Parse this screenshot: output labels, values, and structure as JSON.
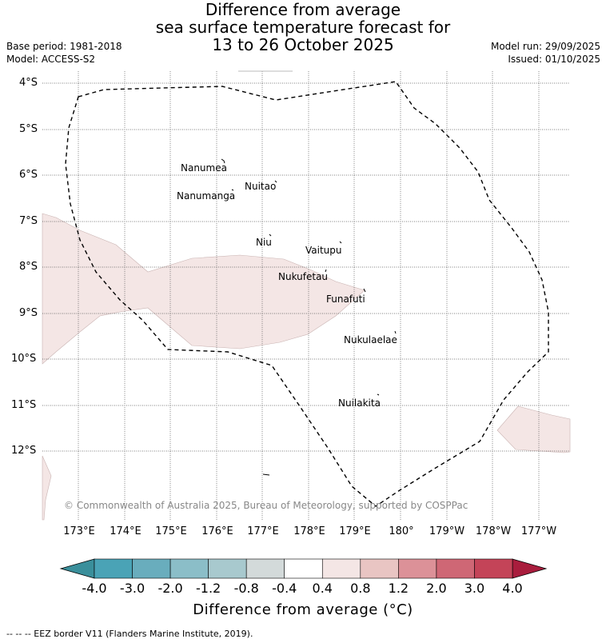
{
  "title": {
    "line1": "Difference from average",
    "line2": "sea surface temperature forecast for",
    "line3": "13 to 26 October 2025"
  },
  "meta": {
    "base_period": "Base period: 1981-2018",
    "model": "Model: ACCESS-S2",
    "model_run": "Model run: 29/09/2025",
    "issued": "Issued: 01/10/2025"
  },
  "map": {
    "latitude_labels": [
      "4°S",
      "5°S",
      "6°S",
      "7°S",
      "8°S",
      "9°S",
      "10°S",
      "11°S",
      "12°S"
    ],
    "longitude_labels": [
      "173°E",
      "174°E",
      "175°E",
      "176°E",
      "177°E",
      "178°E",
      "179°E",
      "180°",
      "179°W",
      "178°W",
      "177°W"
    ],
    "islands": [
      {
        "name": "Nanumea"
      },
      {
        "name": "Nuitao"
      },
      {
        "name": "Nanumanga"
      },
      {
        "name": "Niu"
      },
      {
        "name": "Vaitupu"
      },
      {
        "name": "Nukufetau"
      },
      {
        "name": "Funafuti"
      },
      {
        "name": "Nukulaelae"
      },
      {
        "name": "Nuilakita"
      }
    ],
    "copyright": "© Commonwealth of Australia 2025, Bureau of Meteorology, supported by COSPPac",
    "anomaly_fill_color": "#f4e6e5",
    "anomaly_range": "0.4 to 0.8"
  },
  "colorbar": {
    "ticks": [
      "-4.0",
      "-3.0",
      "-2.0",
      "-1.2",
      "-0.8",
      "-0.4",
      "0.4",
      "0.8",
      "1.2",
      "2.0",
      "3.0",
      "4.0"
    ],
    "colors": [
      "#4aa3b6",
      "#69adbd",
      "#8bbec8",
      "#a8c9ce",
      "#d3dada",
      "#ffffff",
      "#f4e6e5",
      "#e9c5c3",
      "#dc9198",
      "#cf6775",
      "#c44458"
    ],
    "under_color": "#3a8f9b",
    "over_color": "#a91d3d",
    "title": "Difference from average (°C)"
  },
  "footer": {
    "legend": "--  --  -- EEZ border V11 (Flanders Marine Institute, 2019)."
  }
}
